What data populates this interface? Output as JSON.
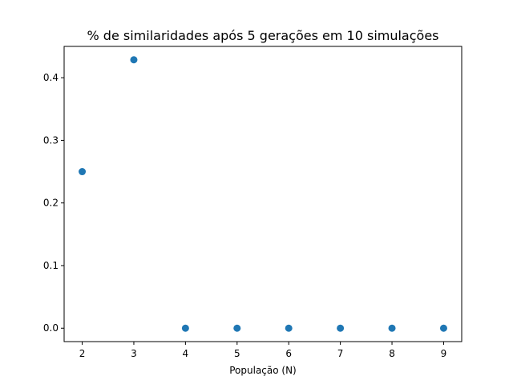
{
  "chart_data": {
    "type": "scatter",
    "title": "% de similaridades após 5 gerações em 10 simulações",
    "xlabel": "População (N)",
    "ylabel": "",
    "x": [
      2,
      3,
      4,
      5,
      6,
      7,
      8,
      9
    ],
    "y": [
      0.25,
      0.4286,
      0.0,
      0.0,
      0.0,
      0.0,
      0.0,
      0.0
    ],
    "xlim": [
      1.65,
      9.35
    ],
    "ylim": [
      -0.0214,
      0.45
    ],
    "xticks": [
      2,
      3,
      4,
      5,
      6,
      7,
      8,
      9
    ],
    "xtick_labels": [
      "2",
      "3",
      "4",
      "5",
      "6",
      "7",
      "8",
      "9"
    ],
    "yticks": [
      0.0,
      0.1,
      0.2,
      0.3,
      0.4
    ],
    "ytick_labels": [
      "0.0",
      "0.1",
      "0.2",
      "0.3",
      "0.4"
    ],
    "marker_color": "#1f77b4",
    "grid": false,
    "legend": "none"
  }
}
